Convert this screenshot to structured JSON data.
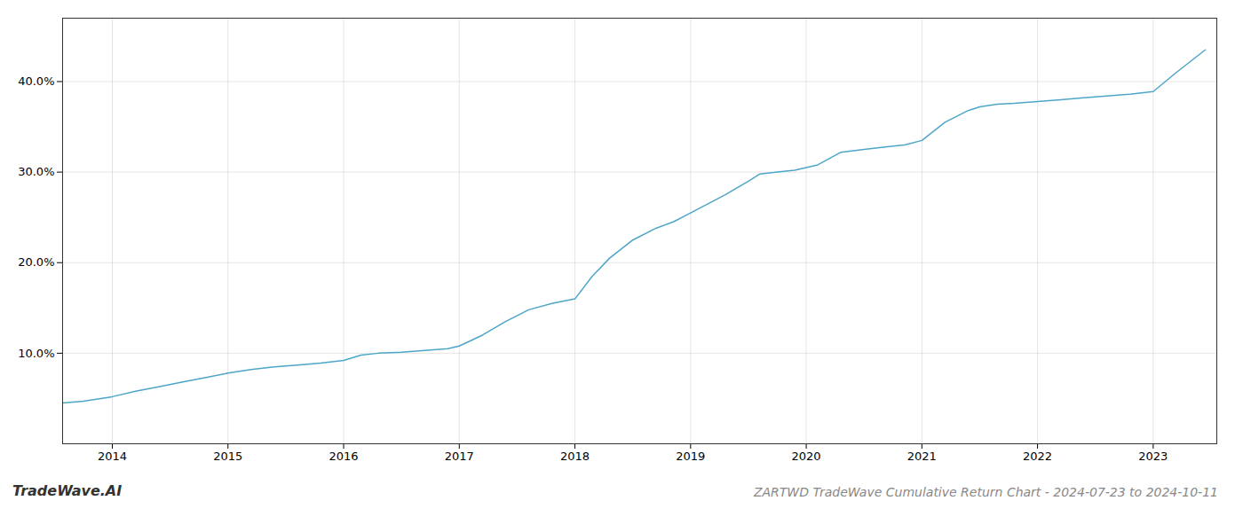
{
  "chart_data": {
    "type": "line",
    "title": "ZARTWD TradeWave Cumulative Return Chart - 2024-07-23 to 2024-10-11",
    "annotations": [
      "TradeWave.AI"
    ],
    "x": [
      2013.57,
      2013.75,
      2014.0,
      2014.2,
      2014.4,
      2014.6,
      2014.8,
      2015.0,
      2015.2,
      2015.4,
      2015.6,
      2015.8,
      2016.0,
      2016.15,
      2016.3,
      2016.5,
      2016.7,
      2016.9,
      2017.0,
      2017.2,
      2017.4,
      2017.6,
      2017.8,
      2018.0,
      2018.15,
      2018.3,
      2018.5,
      2018.7,
      2018.85,
      2019.0,
      2019.15,
      2019.3,
      2019.5,
      2019.6,
      2019.75,
      2019.9,
      2020.1,
      2020.3,
      2020.5,
      2020.7,
      2020.85,
      2021.0,
      2021.2,
      2021.4,
      2021.5,
      2021.65,
      2021.8,
      2022.0,
      2022.2,
      2022.4,
      2022.6,
      2022.8,
      2023.0,
      2023.2,
      2023.45
    ],
    "values": [
      4.5,
      4.7,
      5.2,
      5.8,
      6.3,
      6.8,
      7.3,
      7.8,
      8.2,
      8.5,
      8.7,
      8.9,
      9.2,
      9.8,
      10.0,
      10.1,
      10.3,
      10.5,
      10.8,
      12.0,
      13.5,
      14.8,
      15.5,
      16.0,
      18.5,
      20.5,
      22.5,
      23.8,
      24.5,
      25.5,
      26.5,
      27.5,
      29.0,
      29.8,
      30.0,
      30.2,
      30.8,
      32.2,
      32.5,
      32.8,
      33.0,
      33.5,
      35.5,
      36.8,
      37.2,
      37.5,
      37.6,
      37.8,
      38.0,
      38.2,
      38.4,
      38.6,
      38.9,
      41.0,
      43.5
    ],
    "color": "#4da6c8",
    "xlim": [
      2013.57,
      2023.55
    ],
    "ylim": [
      0,
      47
    ],
    "xticks": [
      2014,
      2015,
      2016,
      2017,
      2018,
      2019,
      2020,
      2021,
      2022,
      2023
    ],
    "yticks": [
      {
        "value": 10.0,
        "label": "10.0%"
      },
      {
        "value": 20.0,
        "label": "20.0%"
      },
      {
        "value": 30.0,
        "label": "30.0%"
      },
      {
        "value": 40.0,
        "label": "40.0%"
      }
    ],
    "grid": true
  }
}
